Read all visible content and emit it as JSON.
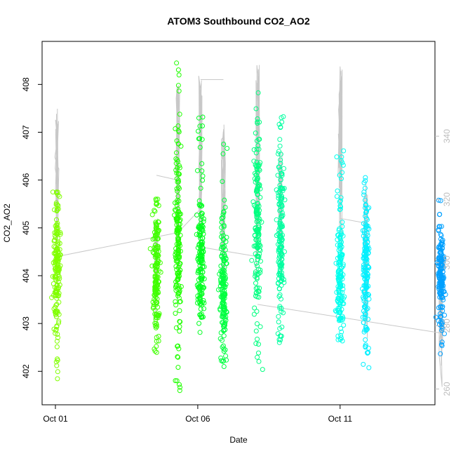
{
  "chart_data": {
    "type": "scatter",
    "title": "ATOM3 Southbound CO2_AO2",
    "xlabel": "Date",
    "ylabel": "CO2_AO2",
    "x_ticks": [
      "Oct 01",
      "Oct 06",
      "Oct 11"
    ],
    "x_tick_dates": [
      "2016-10-01",
      "2016-10-06",
      "2016-10-11"
    ],
    "x_range": [
      "2016-10-01",
      "2016-10-14.8"
    ],
    "y_ticks": [
      402,
      403,
      404,
      405,
      406,
      407,
      408
    ],
    "y_range": [
      401.3,
      408.9
    ],
    "y2_ticks": [
      260,
      280,
      300,
      320,
      340
    ],
    "y2_range": [
      255,
      370
    ],
    "grid": false,
    "legend": "none",
    "colors": {
      "primary_line": "#c8c8c8",
      "axis": "#000000",
      "secondary_axis": "#bdbdbd"
    },
    "clusters": [
      {
        "center_date": "2016-10-01.05",
        "y_min": 401.75,
        "y_max": 405.75,
        "core_min": 403.0,
        "core_max": 405.5,
        "color": "#80ff00"
      },
      {
        "center_date": "2016-10-04.55",
        "y_min": 402.35,
        "y_max": 405.6,
        "core_min": 402.9,
        "core_max": 405.3,
        "color": "#40ff00"
      },
      {
        "center_date": "2016-10-05.3",
        "y_min": 401.55,
        "y_max": 408.5,
        "core_min": 402.8,
        "core_max": 406.5,
        "color": "#20ff00"
      },
      {
        "center_date": "2016-10-06.1",
        "y_min": 402.8,
        "y_max": 407.5,
        "core_min": 403.2,
        "core_max": 405.5,
        "color": "#00ff20"
      },
      {
        "center_date": "2016-10-06.9",
        "y_min": 402.1,
        "y_max": 407.0,
        "core_min": 402.5,
        "core_max": 404.9,
        "color": "#00ff40"
      },
      {
        "center_date": "2016-10-08.1",
        "y_min": 401.9,
        "y_max": 408.05,
        "core_min": 403.5,
        "core_max": 406.5,
        "color": "#00ff80"
      },
      {
        "center_date": "2016-10-08.9",
        "y_min": 402.55,
        "y_max": 407.4,
        "core_min": 403.3,
        "core_max": 406.4,
        "color": "#00ffa0"
      },
      {
        "center_date": "2016-10-11.0",
        "y_min": 402.55,
        "y_max": 406.65,
        "core_min": 402.9,
        "core_max": 405.0,
        "color": "#00ffee"
      },
      {
        "center_date": "2016-10-11.9",
        "y_min": 401.75,
        "y_max": 406.1,
        "core_min": 402.9,
        "core_max": 405.3,
        "color": "#00f0ff"
      },
      {
        "center_date": "2016-10-14.55",
        "y_min": 402.35,
        "y_max": 405.65,
        "core_min": 403.3,
        "core_max": 404.9,
        "color": "#00a0ff"
      }
    ]
  }
}
